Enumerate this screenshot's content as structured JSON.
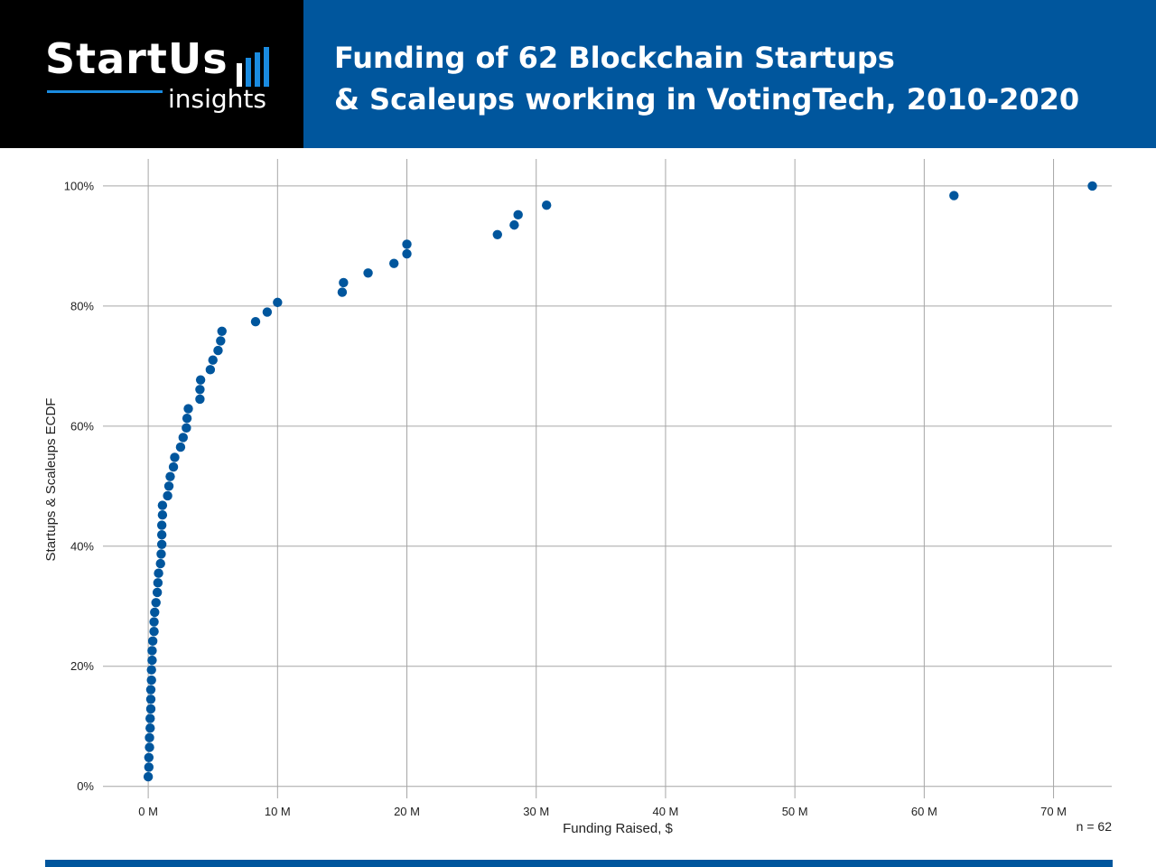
{
  "header": {
    "logo_text": "StartUs",
    "logo_subtext": "insights",
    "title_line1": "Funding of 62 Blockchain Startups",
    "title_line2": "& Scaleups working in VotingTech, 2010-2020"
  },
  "colors": {
    "brand_blue": "#00569d",
    "logo_accent": "#1a8be0",
    "point_color": "#00569d",
    "grid_color": "#a6a6a6"
  },
  "chart_data": {
    "type": "scatter",
    "xlabel": "Funding Raised, $",
    "ylabel": "Startups & Scaleups ECDF",
    "annotation": "n = 62",
    "xlim": [
      -3.5,
      74.5
    ],
    "ylim": [
      -2,
      104.5
    ],
    "x_ticks": [
      0,
      10,
      20,
      30,
      40,
      50,
      60,
      70
    ],
    "x_tick_labels": [
      "0 M",
      "10 M",
      "20 M",
      "30 M",
      "40 M",
      "50 M",
      "60 M",
      "70 M"
    ],
    "y_ticks": [
      0,
      20,
      40,
      60,
      80,
      100
    ],
    "y_tick_labels": [
      "0%",
      "20%",
      "40%",
      "60%",
      "80%",
      "100%"
    ],
    "grid": true,
    "legend": "none",
    "series": [
      {
        "x": [
          0.0,
          0.05,
          0.05,
          0.1,
          0.1,
          0.15,
          0.15,
          0.2,
          0.2,
          0.2,
          0.25,
          0.25,
          0.3,
          0.3,
          0.35,
          0.45,
          0.45,
          0.5,
          0.6,
          0.7,
          0.75,
          0.8,
          0.95,
          1.0,
          1.05,
          1.05,
          1.05,
          1.1,
          1.1,
          1.5,
          1.6,
          1.7,
          1.95,
          2.05,
          2.5,
          2.7,
          2.95,
          3.0,
          3.1,
          4.0,
          4.0,
          4.05,
          4.8,
          5.0,
          5.4,
          5.6,
          5.7,
          8.3,
          9.2,
          10.0,
          15.0,
          15.1,
          17.0,
          19.0,
          20.0,
          20.0,
          27.0,
          28.3,
          28.6,
          30.8,
          62.3,
          73.0
        ],
        "y": [
          1.6,
          3.2,
          4.8,
          6.5,
          8.1,
          9.7,
          11.3,
          12.9,
          14.5,
          16.1,
          17.7,
          19.4,
          21.0,
          22.6,
          24.2,
          25.8,
          27.4,
          29.0,
          30.6,
          32.3,
          33.9,
          35.5,
          37.1,
          38.7,
          40.3,
          41.9,
          43.5,
          45.2,
          46.8,
          48.4,
          50.0,
          51.6,
          53.2,
          54.8,
          56.5,
          58.1,
          59.7,
          61.3,
          62.9,
          64.5,
          66.1,
          67.7,
          69.4,
          71.0,
          72.6,
          74.2,
          75.8,
          77.4,
          79.0,
          80.6,
          82.3,
          83.9,
          85.5,
          87.1,
          88.7,
          90.3,
          91.9,
          93.5,
          95.2,
          96.8,
          98.4,
          100.0
        ]
      }
    ]
  }
}
